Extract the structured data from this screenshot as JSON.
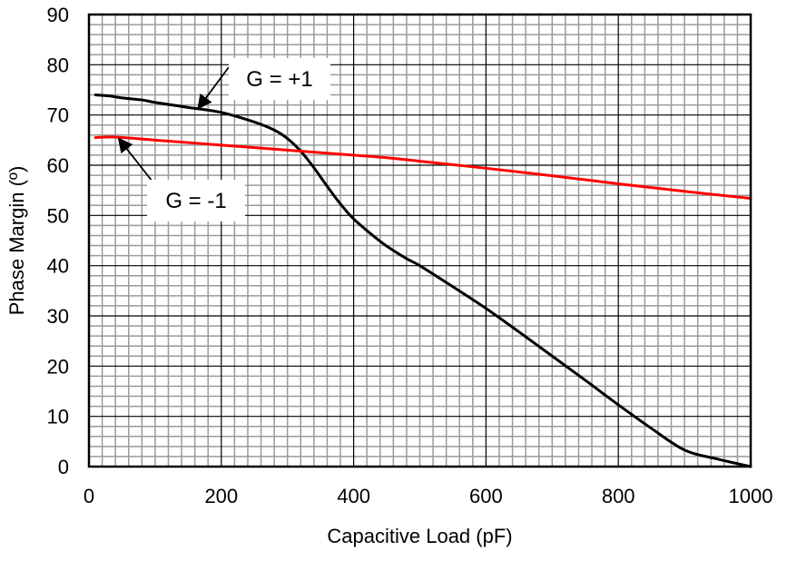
{
  "chart_data": {
    "type": "line",
    "title": "",
    "xlabel": "Capacitive Load (pF)",
    "ylabel": "Phase Margin (º)",
    "xlim": [
      0,
      1000
    ],
    "ylim": [
      0,
      90
    ],
    "x_ticks": [
      0,
      200,
      400,
      600,
      800,
      1000
    ],
    "y_ticks": [
      0,
      10,
      20,
      30,
      40,
      50,
      60,
      70,
      80,
      90
    ],
    "x_tick_labels": [
      "0",
      "200",
      "400",
      "600",
      "800",
      "1000"
    ],
    "y_tick_labels": [
      "0",
      "10",
      "20",
      "30",
      "40",
      "50",
      "60",
      "70",
      "80",
      "90"
    ],
    "x_minor_step": 20,
    "y_minor_step": 2,
    "grid": true,
    "series": [
      {
        "name": "G = +1",
        "color": "#000000",
        "x": [
          10,
          30,
          50,
          80,
          100,
          150,
          200,
          250,
          280,
          300,
          320,
          340,
          360,
          380,
          400,
          430,
          450,
          480,
          500,
          550,
          600,
          650,
          700,
          750,
          800,
          850,
          900,
          950,
          1000
        ],
        "y": [
          74,
          73.8,
          73.4,
          73,
          72.5,
          71.5,
          70.5,
          68.6,
          67,
          65.3,
          62.8,
          59.5,
          55.8,
          52.3,
          49.3,
          45.9,
          43.9,
          41.4,
          40,
          35.8,
          31.5,
          26.8,
          22,
          17.2,
          12.3,
          7.6,
          3.3,
          1.5,
          0
        ]
      },
      {
        "name": "G = -1",
        "color": "#ff0000",
        "x": [
          10,
          40,
          100,
          200,
          300,
          400,
          450,
          500,
          600,
          700,
          800,
          900,
          1000
        ],
        "y": [
          65.5,
          65.6,
          65,
          64,
          63,
          62,
          61.5,
          60.8,
          59.4,
          57.9,
          56.3,
          54.8,
          53.4
        ]
      }
    ],
    "annotations": [
      {
        "text": "G = +1",
        "series": "G = +1",
        "pointer_x": 165,
        "pointer_y": 71.3
      },
      {
        "text": "G = -1",
        "series": "G = -1",
        "pointer_x": 45,
        "pointer_y": 65.3
      }
    ]
  }
}
